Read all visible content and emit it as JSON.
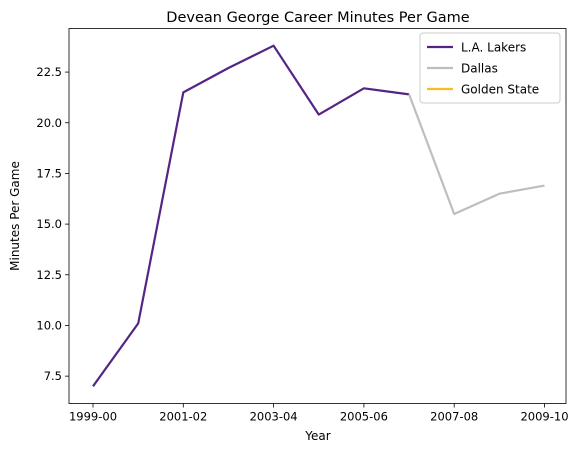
{
  "chart_data": {
    "type": "line",
    "title": "Devean George Career Minutes Per Game",
    "xlabel": "Year",
    "ylabel": "Minutes Per Game",
    "categories": [
      "1999-00",
      "2000-01",
      "2001-02",
      "2002-03",
      "2003-04",
      "2004-05",
      "2005-06",
      "2006-07",
      "2007-08",
      "2008-09",
      "2009-10"
    ],
    "x_tick_labels": [
      "1999-00",
      "2001-02",
      "2003-04",
      "2005-06",
      "2007-08",
      "2009-10"
    ],
    "y_ticks": [
      "7.5",
      "10.0",
      "12.5",
      "15.0",
      "17.5",
      "20.0",
      "22.5"
    ],
    "y_tick_values": [
      7.5,
      10.0,
      12.5,
      15.0,
      17.5,
      20.0,
      22.5
    ],
    "ylim": [
      6.15,
      24.65
    ],
    "grid": false,
    "legend_position": "top-right",
    "series": [
      {
        "name": "L.A. Lakers",
        "color": "#552583",
        "x": [
          "1999-00",
          "2000-01",
          "2001-02",
          "2002-03",
          "2003-04",
          "2004-05",
          "2005-06",
          "2006-07"
        ],
        "values": [
          7.0,
          10.1,
          21.5,
          22.7,
          23.8,
          20.4,
          21.7,
          21.4
        ]
      },
      {
        "name": "Dallas",
        "color": "#BEBEBE",
        "x": [
          "2006-07",
          "2007-08",
          "2008-09",
          "2009-10"
        ],
        "values": [
          21.4,
          15.5,
          16.5,
          16.9
        ]
      },
      {
        "name": "Golden State",
        "color": "#FDB927",
        "x": [],
        "values": []
      }
    ]
  }
}
